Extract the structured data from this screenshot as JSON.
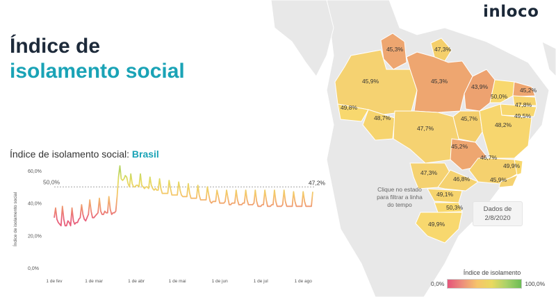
{
  "brand": "inloco",
  "title": {
    "line1": "Índice de",
    "line2": "isolamento social"
  },
  "chart_heading": {
    "prefix": "Índice de isolamento social:",
    "region": "Brasil"
  },
  "map": {
    "note": "Clique no estado para filtrar a linha do tempo",
    "date_label": "Dados de",
    "date_value": "2/8/2020",
    "states": [
      {
        "code": "RR",
        "value": "45,3%",
        "color": "#eea670"
      },
      {
        "code": "AP",
        "value": "47,3%",
        "color": "#f4cf6b"
      },
      {
        "code": "AM",
        "value": "45,9%",
        "color": "#f5d271"
      },
      {
        "code": "PA",
        "value": "45,3%",
        "color": "#eea670"
      },
      {
        "code": "MA",
        "value": "43,9%",
        "color": "#eda270"
      },
      {
        "code": "CE",
        "value": "50,0%",
        "color": "#f8d86e"
      },
      {
        "code": "RN",
        "value": "45,2%",
        "color": "#eea670"
      },
      {
        "code": "AC",
        "value": "49,8%",
        "color": "#f8d86e"
      },
      {
        "code": "PB",
        "value": "47,8%",
        "color": "#f6d46e"
      },
      {
        "code": "PE",
        "value": "49,5%",
        "color": "#f7d76e"
      },
      {
        "code": "RO",
        "value": "48,7%",
        "color": "#f6d46e"
      },
      {
        "code": "MT",
        "value": "47,7%",
        "color": "#f5d271"
      },
      {
        "code": "TO",
        "value": "45,7%",
        "color": "#f4ce6c"
      },
      {
        "code": "BA",
        "value": "48,2%",
        "color": "#f7d66e"
      },
      {
        "code": "GO",
        "value": "45,2%",
        "color": "#eea670"
      },
      {
        "code": "MG",
        "value": "46,7%",
        "color": "#f5d16e"
      },
      {
        "code": "ES",
        "value": "49,9%",
        "color": "#f8d86e"
      },
      {
        "code": "MS",
        "value": "47,3%",
        "color": "#f5d271"
      },
      {
        "code": "SP",
        "value": "46,8%",
        "color": "#f5d271"
      },
      {
        "code": "RJ",
        "value": "45,9%",
        "color": "#f5d271"
      },
      {
        "code": "PR",
        "value": "49,1%",
        "color": "#f6d46e"
      },
      {
        "code": "SC",
        "value": "50,3%",
        "color": "#f8d86e"
      },
      {
        "code": "RS",
        "value": "49,9%",
        "color": "#f8d86e"
      }
    ]
  },
  "legend": {
    "title": "Índice de isolamento",
    "min": "0,0%",
    "max": "100,0%"
  },
  "chart_data": {
    "type": "line",
    "title": "Índice de isolamento social: Brasil",
    "xlabel": "",
    "ylabel": "Índice de isolamento social",
    "ylim": [
      0,
      60
    ],
    "yticks": [
      "0,0%",
      "20,0%",
      "40,0%",
      "60,0%"
    ],
    "ytick_values": [
      0,
      20,
      40,
      60
    ],
    "xticks": [
      "1 de fev",
      "1 de mar",
      "1 de abr",
      "1 de mai",
      "1 de jun",
      "1 de jul",
      "1 de ago"
    ],
    "xtick_days": [
      0,
      29,
      60,
      90,
      121,
      151,
      182
    ],
    "reference_line": {
      "value": 50,
      "label": "50,0%"
    },
    "last_label": "47,2%",
    "series": [
      {
        "values": [
          31,
          37,
          30,
          28,
          27,
          26,
          38,
          30,
          26,
          26,
          29,
          28,
          26,
          37,
          29,
          27,
          28,
          28,
          30,
          31,
          39,
          33,
          30,
          29,
          31,
          33,
          42,
          35,
          31,
          31,
          32,
          33,
          34,
          43,
          35,
          33,
          33,
          35,
          34,
          34,
          44,
          36,
          33,
          34,
          34,
          35,
          44,
          56,
          63,
          55,
          54,
          55,
          57,
          56,
          52,
          50,
          58,
          52,
          50,
          50,
          51,
          51,
          50,
          58,
          51,
          50,
          49,
          50,
          50,
          49,
          56,
          51,
          49,
          48,
          49,
          48,
          48,
          55,
          49,
          46,
          46,
          46,
          46,
          46,
          54,
          49,
          45,
          45,
          45,
          45,
          45,
          53,
          48,
          45,
          44,
          44,
          44,
          44,
          52,
          46,
          43,
          43,
          43,
          43,
          43,
          51,
          45,
          42,
          42,
          42,
          42,
          42,
          50,
          45,
          41,
          40,
          41,
          41,
          41,
          48,
          44,
          40,
          40,
          40,
          40,
          41,
          48,
          43,
          39,
          39,
          40,
          40,
          40,
          48,
          42,
          39,
          39,
          39,
          40,
          40,
          48,
          42,
          39,
          39,
          39,
          39,
          40,
          48,
          41,
          38,
          38,
          38,
          39,
          39,
          48,
          42,
          38,
          38,
          38,
          39,
          39,
          48,
          41,
          38,
          38,
          38,
          38,
          39,
          48,
          41,
          38,
          38,
          38,
          38,
          38,
          47,
          41,
          38,
          38,
          38,
          38,
          38,
          47,
          41,
          38,
          38,
          38,
          38,
          38,
          47
        ]
      }
    ]
  }
}
